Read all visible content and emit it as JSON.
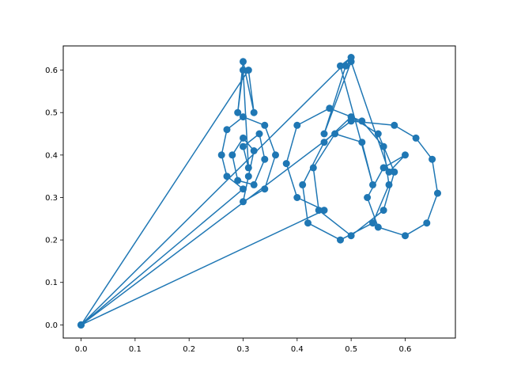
{
  "chart_data": {
    "type": "line",
    "title": "",
    "xlabel": "",
    "ylabel": "",
    "xlim": [
      -0.033,
      0.693
    ],
    "ylim": [
      -0.031,
      0.657
    ],
    "xticks": [
      0.0,
      0.1,
      0.2,
      0.3,
      0.4,
      0.5,
      0.6
    ],
    "xtick_labels": [
      "0.0",
      "0.1",
      "0.2",
      "0.3",
      "0.4",
      "0.5",
      "0.6"
    ],
    "yticks": [
      0.0,
      0.1,
      0.2,
      0.3,
      0.4,
      0.5,
      0.6
    ],
    "ytick_labels": [
      "0.0",
      "0.1",
      "0.2",
      "0.3",
      "0.4",
      "0.5",
      "0.6"
    ],
    "grid": false,
    "legend": "none",
    "color": "#1f77b4",
    "series": [
      {
        "x": [
          0.0,
          0.3,
          0.27,
          0.26,
          0.27,
          0.3,
          0.34,
          0.36,
          0.34,
          0.3,
          0.31,
          0.32,
          0.3,
          0.28,
          0.29,
          0.32,
          0.34,
          0.33,
          0.3,
          0.31,
          0.3,
          0.29,
          0.3,
          0.32,
          0.31,
          0.0,
          0.45,
          0.4,
          0.38,
          0.4,
          0.46,
          0.52,
          0.56,
          0.57,
          0.54,
          0.48,
          0.42,
          0.41,
          0.45,
          0.5,
          0.55,
          0.58,
          0.56,
          0.5,
          0.44,
          0.43,
          0.47,
          0.52,
          0.54,
          0.48,
          0.5,
          0.0,
          0.5,
          0.58,
          0.62,
          0.65,
          0.66,
          0.64,
          0.6,
          0.55,
          0.53,
          0.56,
          0.6,
          0.57,
          0.5,
          0.45,
          0.49
        ],
        "y": [
          0.0,
          0.32,
          0.35,
          0.4,
          0.46,
          0.49,
          0.47,
          0.4,
          0.32,
          0.29,
          0.35,
          0.41,
          0.44,
          0.4,
          0.34,
          0.33,
          0.39,
          0.45,
          0.42,
          0.37,
          0.6,
          0.5,
          0.62,
          0.5,
          0.6,
          0.0,
          0.27,
          0.3,
          0.38,
          0.47,
          0.51,
          0.48,
          0.42,
          0.33,
          0.24,
          0.2,
          0.24,
          0.33,
          0.43,
          0.49,
          0.45,
          0.36,
          0.27,
          0.21,
          0.27,
          0.37,
          0.45,
          0.43,
          0.33,
          0.61,
          0.63,
          0.0,
          0.48,
          0.47,
          0.44,
          0.39,
          0.31,
          0.24,
          0.21,
          0.23,
          0.3,
          0.37,
          0.4,
          0.36,
          0.62,
          0.45,
          0.61
        ]
      }
    ]
  }
}
